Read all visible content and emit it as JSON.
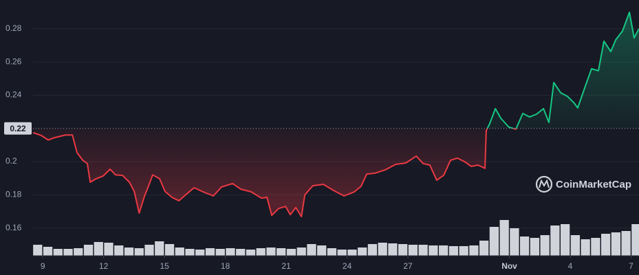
{
  "chart_data": {
    "type": "line",
    "x": [
      8.53,
      8.93,
      9.27,
      9.61,
      10.12,
      10.46,
      10.69,
      10.97,
      11.2,
      11.34,
      11.64,
      11.97,
      12.32,
      12.59,
      12.93,
      13.27,
      13.51,
      13.75,
      14.02,
      14.22,
      14.42,
      14.76,
      15.03,
      15.37,
      15.71,
      16.05,
      16.46,
      16.9,
      17.41,
      17.81,
      18.36,
      18.76,
      19.27,
      19.78,
      20.05,
      20.29,
      20.63,
      20.97,
      21.2,
      21.47,
      21.75,
      21.92,
      22.32,
      22.83,
      23.34,
      23.85,
      24.36,
      24.69,
      24.97,
      25.37,
      25.88,
      26.39,
      26.9,
      27.41,
      27.75,
      28.08,
      28.42,
      28.76,
      29.1,
      29.44,
      29.78,
      30.12,
      30.46,
      30.8,
      30.86,
      31.03,
      31.31,
      31.58,
      31.98,
      32.32,
      32.66,
      33,
      33.34,
      33.68,
      33.95,
      34.19,
      34.53,
      34.86,
      35.2,
      35.37,
      35.71,
      36.05,
      36.39,
      36.66,
      37,
      37.24,
      37.58,
      37.92,
      38.15,
      38.39
    ],
    "values": [
      0.2174,
      0.2157,
      0.213,
      0.2145,
      0.216,
      0.216,
      0.2054,
      0.2008,
      0.1988,
      0.1876,
      0.1897,
      0.1913,
      0.1954,
      0.192,
      0.1917,
      0.1876,
      0.182,
      0.169,
      0.1793,
      0.1855,
      0.192,
      0.1897,
      0.182,
      0.1785,
      0.1764,
      0.18,
      0.1843,
      0.1818,
      0.1793,
      0.1847,
      0.1868,
      0.1834,
      0.1818,
      0.178,
      0.1785,
      0.1677,
      0.1718,
      0.173,
      0.168,
      0.1723,
      0.1669,
      0.18,
      0.1855,
      0.1863,
      0.1826,
      0.1793,
      0.1818,
      0.1851,
      0.1925,
      0.193,
      0.195,
      0.1983,
      0.1992,
      0.2033,
      0.1988,
      0.1979,
      0.1888,
      0.1917,
      0.2008,
      0.2021,
      0.2,
      0.1971,
      0.1979,
      0.1959,
      0.2186,
      0.2228,
      0.2319,
      0.2261,
      0.2207,
      0.2195,
      0.229,
      0.2269,
      0.2286,
      0.2319,
      0.2236,
      0.2476,
      0.2414,
      0.2393,
      0.2352,
      0.2323,
      0.2443,
      0.2559,
      0.2547,
      0.2725,
      0.2663,
      0.2733,
      0.2787,
      0.2899,
      0.2745,
      0.28
    ],
    "baseline": 0.22,
    "colors": {
      "up": "#16c784",
      "down": "#ea3943"
    },
    "xlim": [
      8.52,
      38.39
    ],
    "xticks": [
      9,
      12,
      15,
      18,
      21,
      24,
      27,
      {
        "value": 32,
        "label": "Nov"
      },
      {
        "value": 35,
        "label": "4"
      },
      {
        "value": 38,
        "label": "7"
      }
    ],
    "ylim": [
      0.1433,
      0.2973
    ],
    "yticks": [
      0.16,
      0.18,
      0.2,
      0.22,
      0.24,
      0.26,
      0.28
    ],
    "grid": true,
    "volume": {
      "color": "#e6e8ef",
      "lim": [
        0,
        60
      ],
      "x": [
        8.75,
        9.25,
        9.75,
        10.25,
        10.75,
        11.25,
        11.75,
        12.25,
        12.75,
        13.25,
        13.75,
        14.25,
        14.75,
        15.25,
        15.75,
        16.25,
        16.75,
        17.25,
        17.75,
        18.25,
        18.75,
        19.25,
        19.75,
        20.25,
        20.75,
        21.25,
        21.75,
        22.25,
        22.75,
        23.25,
        23.75,
        24.25,
        24.75,
        25.25,
        25.75,
        26.25,
        26.75,
        27.25,
        27.75,
        28.25,
        28.75,
        29.25,
        29.75,
        30.25,
        30.75,
        31.25,
        31.75,
        32.25,
        32.75,
        33.25,
        33.75,
        34.25,
        34.75,
        35.25,
        35.75,
        36.25,
        36.75,
        37.25,
        37.75,
        38.25
      ],
      "values": [
        16,
        13,
        10,
        10,
        11,
        16,
        20,
        19,
        15,
        12,
        11,
        16,
        21,
        17,
        12,
        10,
        9,
        11,
        10,
        11,
        10,
        9,
        11,
        12,
        11,
        10,
        12,
        17,
        15,
        11,
        9,
        9,
        12,
        17,
        19,
        18,
        17,
        16,
        16,
        15,
        15,
        14,
        14,
        15,
        22,
        42,
        52,
        40,
        28,
        26,
        30,
        44,
        46,
        30,
        24,
        26,
        32,
        34,
        36,
        46
      ]
    },
    "watermark": "CoinMarketCap"
  }
}
